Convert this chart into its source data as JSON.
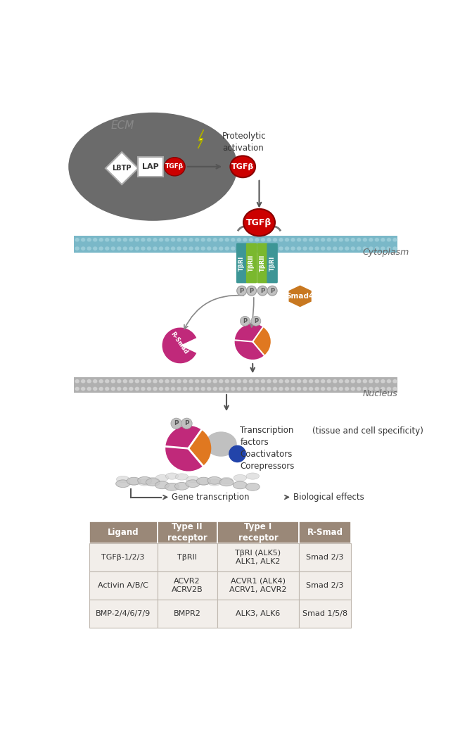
{
  "bg_color": "#ffffff",
  "ecm_text": "ECM",
  "proteolytic_text": "Proteolytic\nactivation",
  "cytoplasm_text": "Cytoplasm",
  "nucleus_text": "Nucleus",
  "lbtp_label": "LBTP",
  "lap_label": "LAP",
  "tgfb_label": "TGFβ",
  "tbri_label": "TβRI",
  "tbrii_label": "TβRII",
  "smad4_label": "Smad4",
  "rsmad_label": "R-Smad",
  "transcription_text": "Transcription\nfactors\nCoactivators\nCorepressors",
  "tissue_text": "(tissue and cell specificity)",
  "red_color": "#cc0000",
  "teal_color": "#3d9696",
  "green_color": "#7ab82e",
  "magenta_color": "#c0297a",
  "orange_color": "#e07820",
  "gray_color": "#999999",
  "blue_color": "#2244aa",
  "smad4_color": "#c87820",
  "membrane_color_top": "#7ab8c8",
  "membrane_color_bot": "#8ac8d0",
  "p_circle_color": "#c0c0c0",
  "p_text_color": "#555555",
  "ecm_shadow_color": "#444444",
  "table_header_bg": "#9a8878",
  "table_row_bg": "#f2eeea",
  "table_header_text": "#ffffff",
  "table_body_text": "#333333",
  "table_border_color": "#c0b8b0",
  "table_col_headers": [
    "Ligand",
    "Type II\nreceptor",
    "Type I\nreceptor",
    "R-Smad"
  ],
  "table_rows": [
    [
      "TGFβ-1/2/3",
      "TβRII",
      "TβRI (ALK5)\nALK1, ALK2",
      "Smad 2/3"
    ],
    [
      "Activin A/B/C",
      "ACVR2\nACRV2B",
      "ACVR1 (ALK4)\nACRV1, ACVR2",
      "Smad 2/3"
    ],
    [
      "BMP-2/4/6/7/9",
      "BMPR2",
      "ALK3, ALK6",
      "Smad 1/5/8"
    ]
  ]
}
